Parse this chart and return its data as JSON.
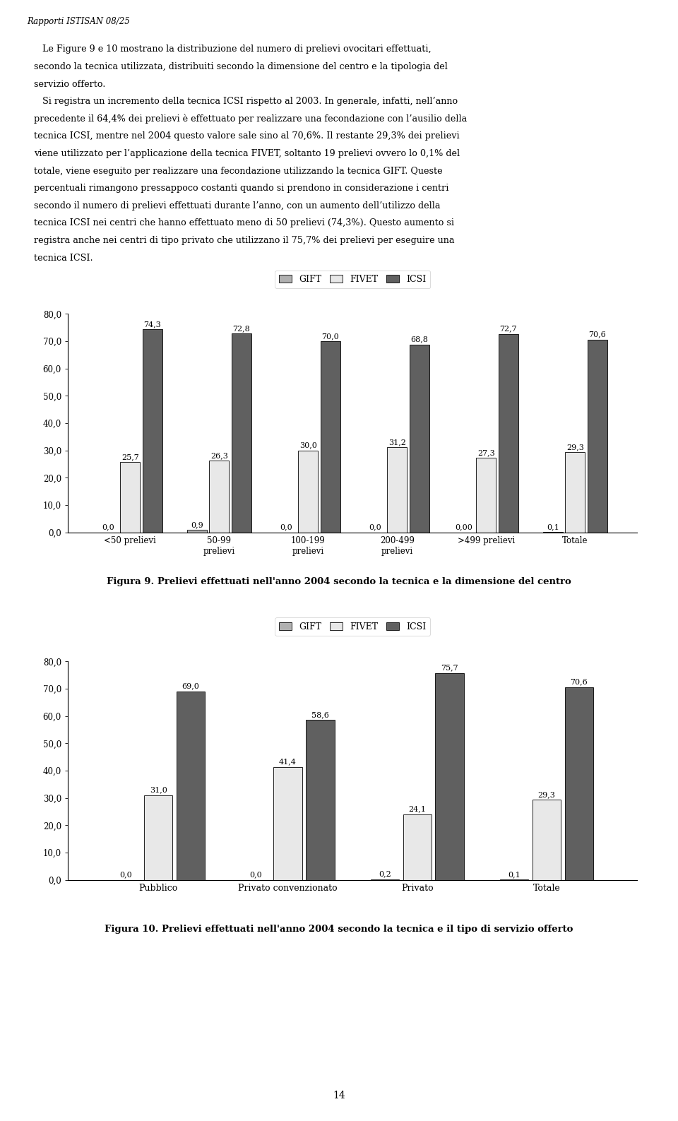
{
  "title_header": "Rapporti ISTISAN 08/25",
  "body_text_lines": [
    "   Le Figure 9 e 10 mostrano la distribuzione del numero di prelievi ovocitari effettuati,",
    "secondo la tecnica utilizzata, distribuiti secondo la dimensione del centro e la tipologia del",
    "servizio offerto.",
    "   Si registra un incremento della tecnica ICSI rispetto al 2003. In generale, infatti, nell’anno",
    "precedente il 64,4% dei prelievi è effettuato per realizzare una fecondazione con l’ausilio della",
    "tecnica ICSI, mentre nel 2004 questo valore sale sino al 70,6%. Il restante 29,3% dei prelievi",
    "viene utilizzato per l’applicazione della tecnica FIVET, soltanto 19 prelievi ovvero lo 0,1% del",
    "totale, viene eseguito per realizzare una fecondazione utilizzando la tecnica GIFT. Queste",
    "percentuali rimangono pressappoco costanti quando si prendono in considerazione i centri",
    "secondo il numero di prelievi effettuati durante l’anno, con un aumento dell’utilizzo della",
    "tecnica ICSI nei centri che hanno effettuato meno di 50 prelievi (74,3%). Questo aumento si",
    "registra anche nei centri di tipo privato che utilizzano il 75,7% dei prelievi per eseguire una",
    "tecnica ICSI."
  ],
  "chart1": {
    "categories": [
      "<50 prelievi",
      "50-99\nprelievi",
      "100-199\nprelievi",
      "200-499\nprelievi",
      ">499 prelievi",
      "Totale"
    ],
    "gift": [
      0.0,
      0.9,
      0.0,
      0.0,
      0.0,
      0.1
    ],
    "fivet": [
      25.7,
      26.3,
      30.0,
      31.2,
      27.3,
      29.3
    ],
    "icsi": [
      74.3,
      72.8,
      70.0,
      68.8,
      72.7,
      70.6
    ],
    "gift_labels": [
      "0,0",
      "0,9",
      "0,0",
      "0,0",
      "0,00",
      "0,1"
    ],
    "fivet_labels": [
      "25,7",
      "26,3",
      "30,0",
      "31,2",
      "27,3",
      "29,3"
    ],
    "icsi_labels": [
      "74,3",
      "72,8",
      "70,0",
      "68,8",
      "72,7",
      "70,6"
    ],
    "ylim": [
      0,
      80
    ],
    "yticks": [
      0.0,
      10.0,
      20.0,
      30.0,
      40.0,
      50.0,
      60.0,
      70.0,
      80.0
    ],
    "colors": [
      "#b0b0b0",
      "#e8e8e8",
      "#606060"
    ],
    "fig9_caption": "Figura 9. Prelievi effettuati nell'anno 2004 secondo la tecnica e la dimensione del centro"
  },
  "chart2": {
    "categories": [
      "Pubblico",
      "Privato convenzionato",
      "Privato",
      "Totale"
    ],
    "gift": [
      0.0,
      0.0,
      0.2,
      0.1
    ],
    "fivet": [
      31.0,
      41.4,
      24.1,
      29.3
    ],
    "icsi": [
      69.0,
      58.6,
      75.7,
      70.6
    ],
    "gift_labels": [
      "0,0",
      "0,0",
      "0,2",
      "0,1"
    ],
    "fivet_labels": [
      "31,0",
      "41,4",
      "24,1",
      "29,3"
    ],
    "icsi_labels": [
      "69,0",
      "58,6",
      "75,7",
      "70,6"
    ],
    "ylim": [
      0,
      80
    ],
    "yticks": [
      0.0,
      10.0,
      20.0,
      30.0,
      40.0,
      50.0,
      60.0,
      70.0,
      80.0
    ],
    "colors": [
      "#b0b0b0",
      "#e8e8e8",
      "#606060"
    ],
    "fig10_caption": "Figura 10. Prelievi effettuati nell'anno 2004 secondo la tecnica e il tipo di servizio offerto"
  },
  "page_number": "14",
  "bar_width": 0.22,
  "bar_gap": 0.03
}
